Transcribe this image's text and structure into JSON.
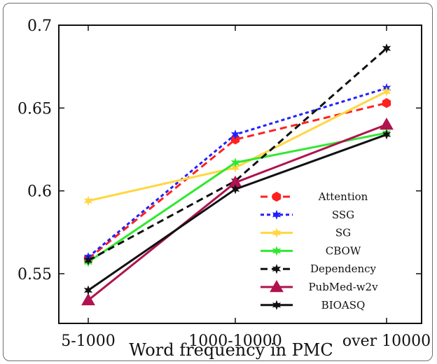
{
  "chart_data": {
    "type": "line",
    "categories": [
      "5-1000",
      "1000-10000",
      "over 10000"
    ],
    "xlabel": "Word frequency in PMC",
    "ylabel": "",
    "ylim": [
      0.52,
      0.7
    ],
    "yticks": [
      "0.55",
      "0.6",
      "0.65",
      "0.7"
    ],
    "legend_position": "bottom-right",
    "grid": false,
    "series": [
      {
        "name": "Attention",
        "values": [
          0.559,
          0.631,
          0.653
        ],
        "color": "#ff2020",
        "dash": "dashed",
        "marker": "hexagon"
      },
      {
        "name": "SSG",
        "values": [
          0.56,
          0.634,
          0.662
        ],
        "color": "#2020ff",
        "dash": "dotted",
        "marker": "star"
      },
      {
        "name": "SG",
        "values": [
          0.594,
          0.614,
          0.66
        ],
        "color": "#ffd740",
        "dash": "solid",
        "marker": "star"
      },
      {
        "name": "CBOW",
        "values": [
          0.557,
          0.617,
          0.635
        ],
        "color": "#30e830",
        "dash": "solid",
        "marker": "star"
      },
      {
        "name": "Dependency",
        "values": [
          0.558,
          0.606,
          0.686
        ],
        "color": "#111111",
        "dash": "dashed",
        "marker": "star"
      },
      {
        "name": "PubMed-w2v",
        "values": [
          0.534,
          0.605,
          0.64
        ],
        "color": "#b0134f",
        "dash": "solid",
        "marker": "triangle"
      },
      {
        "name": "BIOASQ",
        "values": [
          0.54,
          0.601,
          0.634
        ],
        "color": "#111111",
        "dash": "solid",
        "marker": "star"
      }
    ]
  }
}
